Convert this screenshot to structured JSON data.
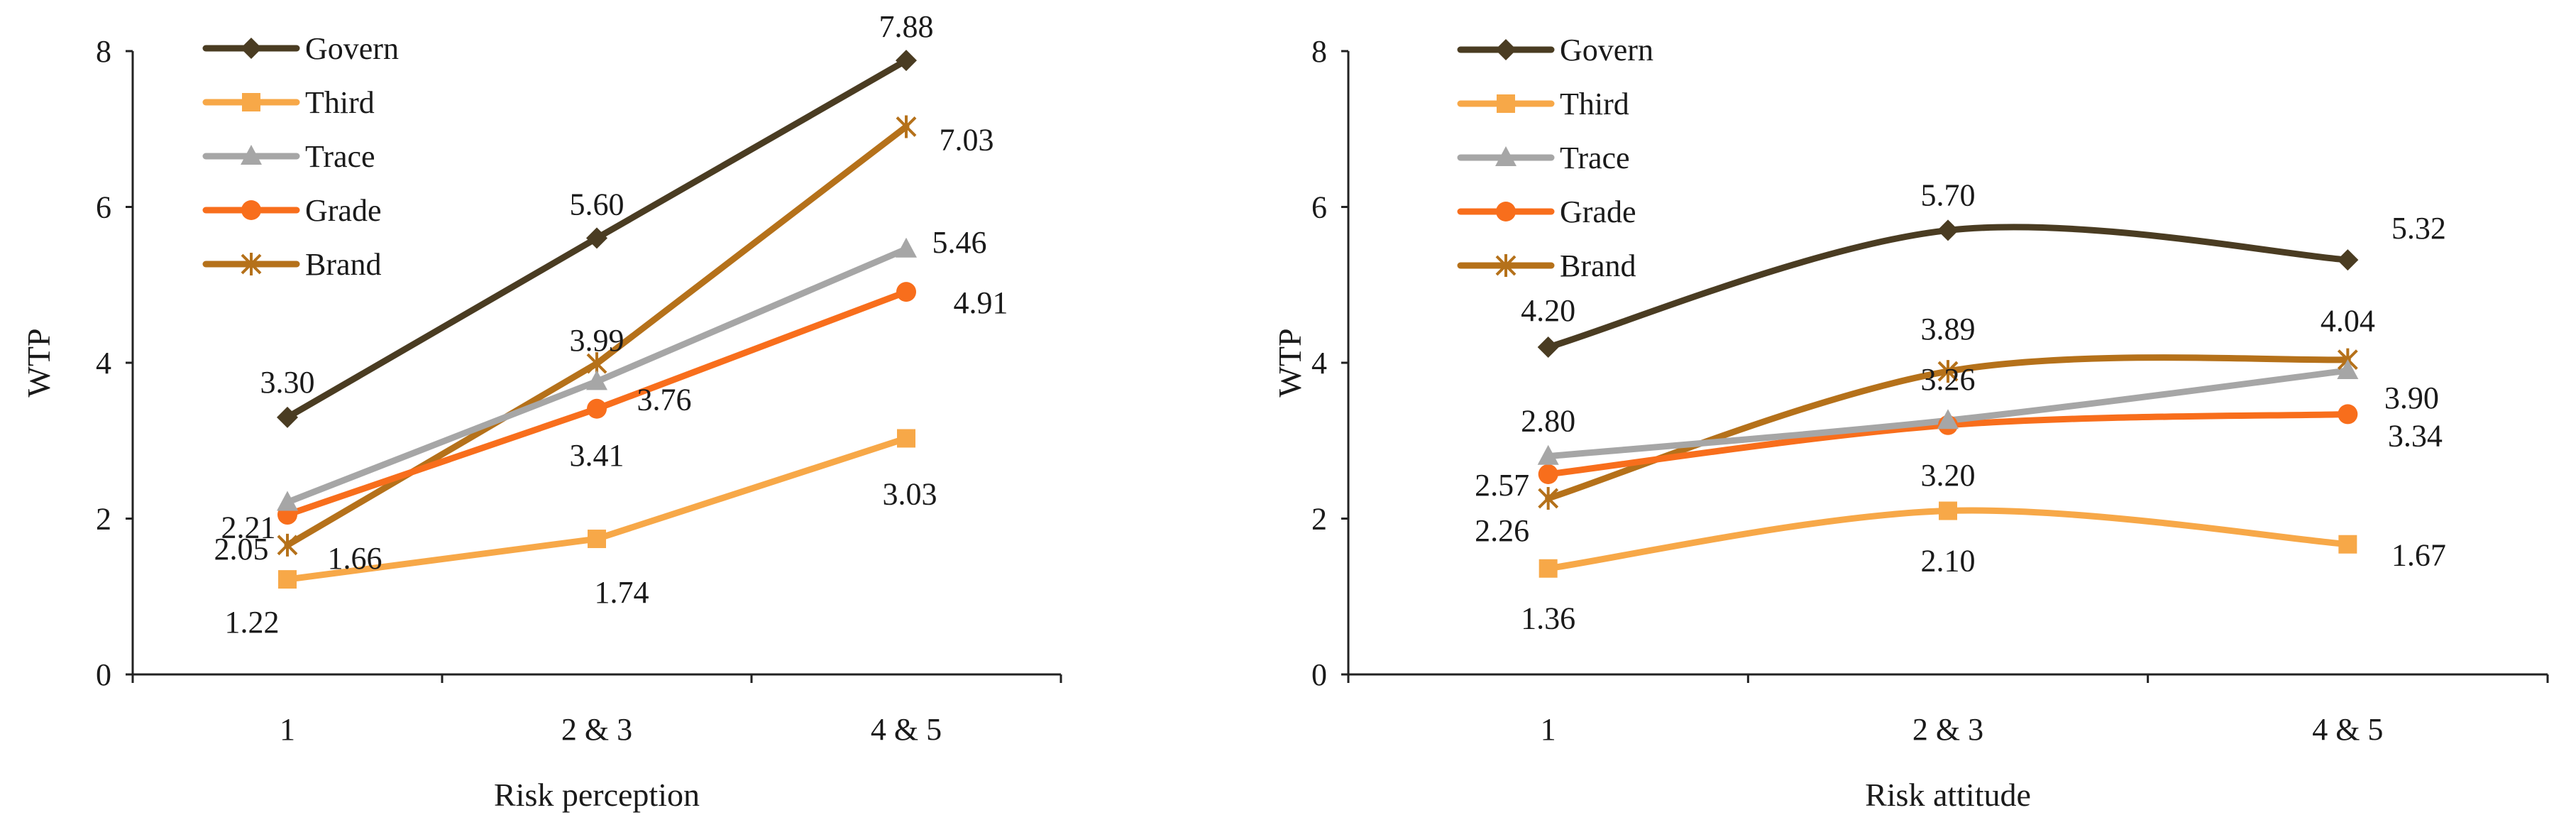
{
  "chart_data": [
    {
      "type": "line",
      "title": "",
      "xlabel": "Risk perception",
      "ylabel": "WTP",
      "ylim": [
        0,
        8
      ],
      "yticks": [
        "0",
        "2",
        "4",
        "6",
        "8"
      ],
      "categories": [
        "1",
        "2 & 3",
        "4 & 5"
      ],
      "legend_position": "top-left",
      "smooth": false,
      "series": [
        {
          "name": "Govern",
          "color": "#4a3c22",
          "marker": "diamond",
          "values": [
            3.3,
            5.6,
            7.88
          ],
          "labels": [
            "3.30",
            "5.60",
            "7.88"
          ]
        },
        {
          "name": "Third",
          "color": "#f7a848",
          "marker": "square",
          "values": [
            1.22,
            1.74,
            3.03
          ],
          "labels": [
            "1.22",
            "1.74",
            "3.03"
          ]
        },
        {
          "name": "Trace",
          "color": "#a6a6a6",
          "marker": "triangle",
          "values": [
            2.21,
            3.76,
            5.46
          ],
          "labels": [
            "2.21",
            "3.76",
            "5.46"
          ]
        },
        {
          "name": "Grade",
          "color": "#f86e1c",
          "marker": "circle",
          "values": [
            2.05,
            3.41,
            4.91
          ],
          "labels": [
            "2.05",
            "3.41",
            "4.91"
          ]
        },
        {
          "name": "Brand",
          "color": "#b5711a",
          "marker": "x",
          "values": [
            1.66,
            3.99,
            7.03
          ],
          "labels": [
            "1.66",
            "3.99",
            "7.03"
          ]
        }
      ]
    },
    {
      "type": "line",
      "title": "",
      "xlabel": "Risk attitude",
      "ylabel": "WTP",
      "ylim": [
        0,
        8
      ],
      "yticks": [
        "0",
        "2",
        "4",
        "6",
        "8"
      ],
      "categories": [
        "1",
        "2 & 3",
        "4 & 5"
      ],
      "legend_position": "top-left",
      "smooth": true,
      "series": [
        {
          "name": "Govern",
          "color": "#4a3c22",
          "marker": "diamond",
          "values": [
            4.2,
            5.7,
            5.32
          ],
          "labels": [
            "4.20",
            "5.70",
            "5.32"
          ]
        },
        {
          "name": "Third",
          "color": "#f7a848",
          "marker": "square",
          "values": [
            1.36,
            2.1,
            1.67
          ],
          "labels": [
            "1.36",
            "2.10",
            "1.67"
          ]
        },
        {
          "name": "Trace",
          "color": "#a6a6a6",
          "marker": "triangle",
          "values": [
            2.8,
            3.26,
            3.9
          ],
          "labels": [
            "2.80",
            "3.26",
            "3.90"
          ]
        },
        {
          "name": "Grade",
          "color": "#f86e1c",
          "marker": "circle",
          "values": [
            2.57,
            3.2,
            3.34
          ],
          "labels": [
            "2.57",
            "3.20",
            "3.34"
          ]
        },
        {
          "name": "Brand",
          "color": "#b5711a",
          "marker": "x",
          "values": [
            2.26,
            3.89,
            4.04
          ],
          "labels": [
            "2.26",
            "3.89",
            "4.04"
          ]
        }
      ]
    }
  ]
}
